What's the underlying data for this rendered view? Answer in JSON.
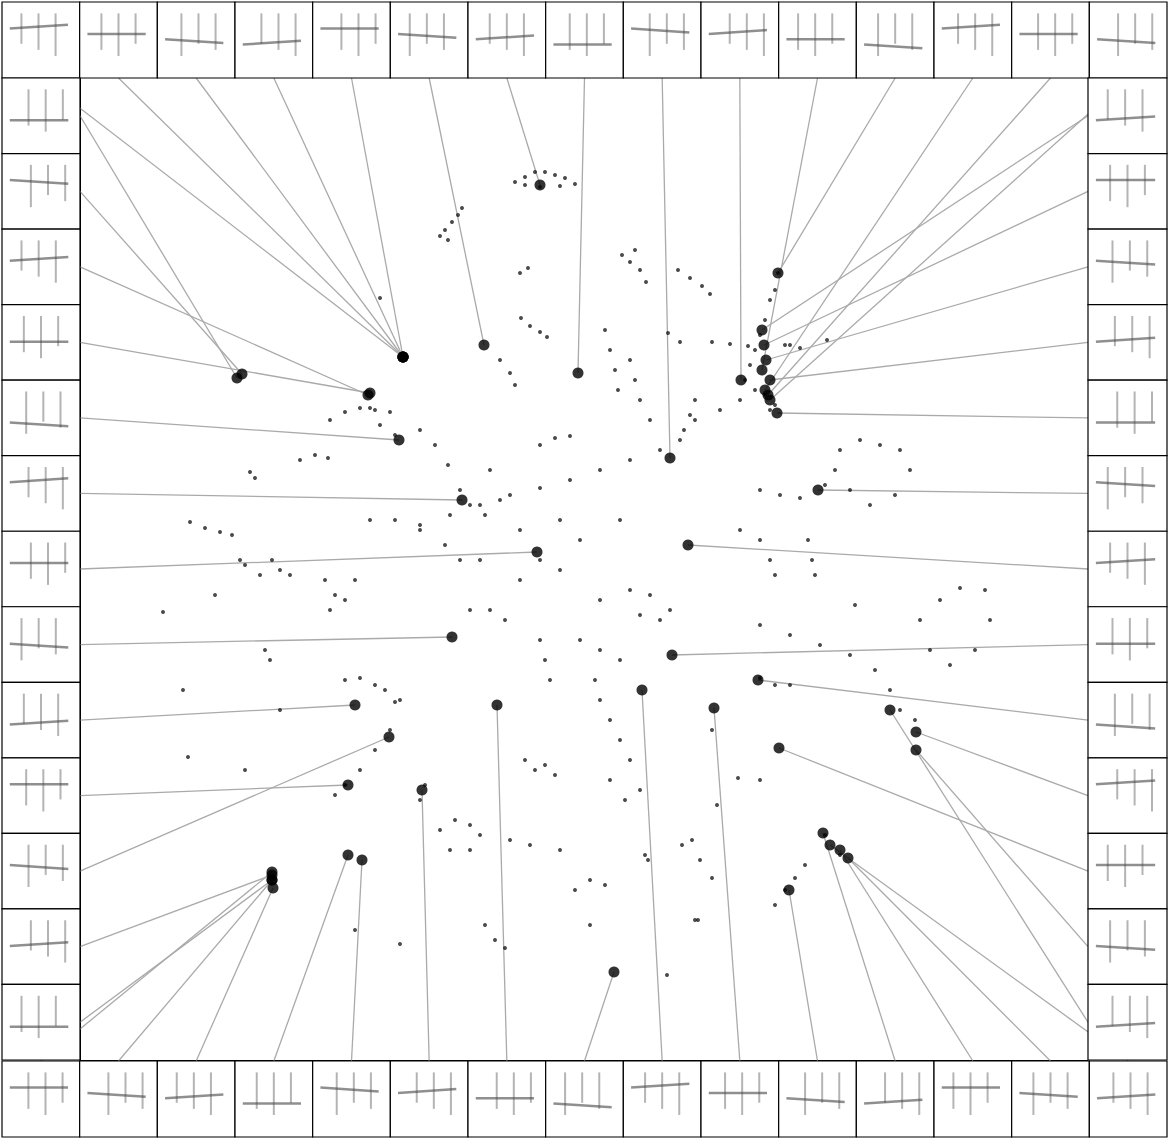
{
  "chart_data": {
    "type": "scatter",
    "color": "#000000",
    "marker": "circle",
    "grid": false,
    "tick_labels": false,
    "xlim": [
      80,
      1088
    ],
    "ylim": [
      79,
      1061
    ],
    "points": [
      [
        515,
        957
      ],
      [
        525,
        962
      ],
      [
        535,
        967
      ],
      [
        545,
        967
      ],
      [
        555,
        964
      ],
      [
        565,
        961
      ],
      [
        575,
        955
      ],
      [
        560,
        953
      ],
      [
        540,
        952
      ],
      [
        525,
        954
      ],
      [
        462,
        931
      ],
      [
        458,
        924
      ],
      [
        452,
        917
      ],
      [
        445,
        909
      ],
      [
        440,
        903
      ],
      [
        448,
        899
      ],
      [
        520,
        866
      ],
      [
        528,
        871
      ],
      [
        622,
        884
      ],
      [
        630,
        877
      ],
      [
        640,
        869
      ],
      [
        646,
        857
      ],
      [
        635,
        889
      ],
      [
        678,
        869
      ],
      [
        690,
        861
      ],
      [
        702,
        853
      ],
      [
        710,
        845
      ],
      [
        380,
        841
      ],
      [
        521,
        821
      ],
      [
        530,
        813
      ],
      [
        540,
        807
      ],
      [
        547,
        802
      ],
      [
        500,
        779
      ],
      [
        510,
        766
      ],
      [
        515,
        754
      ],
      [
        605,
        809
      ],
      [
        610,
        789
      ],
      [
        615,
        769
      ],
      [
        618,
        749
      ],
      [
        630,
        779
      ],
      [
        635,
        759
      ],
      [
        640,
        739
      ],
      [
        650,
        719
      ],
      [
        668,
        806
      ],
      [
        680,
        797
      ],
      [
        695,
        739
      ],
      [
        690,
        724
      ],
      [
        684,
        709
      ],
      [
        712,
        797
      ],
      [
        730,
        795
      ],
      [
        748,
        793
      ],
      [
        778,
        866
      ],
      [
        775,
        849
      ],
      [
        770,
        839
      ],
      [
        765,
        819
      ],
      [
        760,
        804
      ],
      [
        755,
        789
      ],
      [
        750,
        774
      ],
      [
        745,
        759
      ],
      [
        755,
        749
      ],
      [
        765,
        744
      ],
      [
        775,
        734
      ],
      [
        770,
        729
      ],
      [
        740,
        739
      ],
      [
        720,
        729
      ],
      [
        785,
        794
      ],
      [
        800,
        791
      ],
      [
        790,
        794
      ],
      [
        827,
        799
      ],
      [
        330,
        719
      ],
      [
        345,
        727
      ],
      [
        360,
        731
      ],
      [
        375,
        729
      ],
      [
        390,
        727
      ],
      [
        370,
        731
      ],
      [
        380,
        714
      ],
      [
        395,
        704
      ],
      [
        300,
        679
      ],
      [
        315,
        684
      ],
      [
        328,
        681
      ],
      [
        420,
        709
      ],
      [
        435,
        694
      ],
      [
        448,
        674
      ],
      [
        460,
        649
      ],
      [
        470,
        634
      ],
      [
        485,
        624
      ],
      [
        500,
        639
      ],
      [
        540,
        694
      ],
      [
        555,
        701
      ],
      [
        570,
        703
      ],
      [
        420,
        614
      ],
      [
        450,
        624
      ],
      [
        480,
        634
      ],
      [
        510,
        644
      ],
      [
        540,
        651
      ],
      [
        570,
        659
      ],
      [
        600,
        669
      ],
      [
        630,
        679
      ],
      [
        660,
        689
      ],
      [
        680,
        699
      ],
      [
        695,
        719
      ],
      [
        370,
        619
      ],
      [
        395,
        619
      ],
      [
        420,
        609
      ],
      [
        445,
        594
      ],
      [
        460,
        579
      ],
      [
        190,
        617
      ],
      [
        205,
        611
      ],
      [
        220,
        607
      ],
      [
        232,
        604
      ],
      [
        250,
        667
      ],
      [
        255,
        661
      ],
      [
        272,
        579
      ],
      [
        280,
        569
      ],
      [
        290,
        564
      ],
      [
        260,
        564
      ],
      [
        325,
        559
      ],
      [
        335,
        544
      ],
      [
        330,
        529
      ],
      [
        345,
        539
      ],
      [
        355,
        559
      ],
      [
        215,
        544
      ],
      [
        240,
        579
      ],
      [
        245,
        574
      ],
      [
        163,
        527
      ],
      [
        265,
        489
      ],
      [
        270,
        479
      ],
      [
        280,
        429
      ],
      [
        345,
        459
      ],
      [
        360,
        461
      ],
      [
        375,
        454
      ],
      [
        385,
        449
      ],
      [
        395,
        437
      ],
      [
        400,
        439
      ],
      [
        390,
        409
      ],
      [
        375,
        389
      ],
      [
        360,
        369
      ],
      [
        345,
        354
      ],
      [
        335,
        344
      ],
      [
        245,
        369
      ],
      [
        183,
        449
      ],
      [
        188,
        382
      ],
      [
        425,
        354
      ],
      [
        420,
        339
      ],
      [
        440,
        309
      ],
      [
        455,
        319
      ],
      [
        470,
        314
      ],
      [
        480,
        304
      ],
      [
        470,
        289
      ],
      [
        450,
        289
      ],
      [
        540,
        499
      ],
      [
        545,
        479
      ],
      [
        550,
        459
      ],
      [
        580,
        499
      ],
      [
        600,
        489
      ],
      [
        620,
        479
      ],
      [
        525,
        379
      ],
      [
        535,
        369
      ],
      [
        545,
        374
      ],
      [
        555,
        364
      ],
      [
        595,
        459
      ],
      [
        600,
        439
      ],
      [
        610,
        419
      ],
      [
        620,
        399
      ],
      [
        630,
        379
      ],
      [
        610,
        359
      ],
      [
        625,
        339
      ],
      [
        640,
        349
      ],
      [
        575,
        249
      ],
      [
        590,
        259
      ],
      [
        605,
        254
      ],
      [
        485,
        214
      ],
      [
        495,
        199
      ],
      [
        505,
        191
      ],
      [
        355,
        209
      ],
      [
        400,
        195
      ],
      [
        510,
        299
      ],
      [
        530,
        294
      ],
      [
        560,
        289
      ],
      [
        645,
        284
      ],
      [
        667,
        164
      ],
      [
        590,
        214
      ],
      [
        682,
        294
      ],
      [
        712,
        261
      ],
      [
        695,
        219
      ],
      [
        470,
        529
      ],
      [
        490,
        529
      ],
      [
        505,
        519
      ],
      [
        630,
        549
      ],
      [
        650,
        544
      ],
      [
        670,
        529
      ],
      [
        660,
        519
      ],
      [
        640,
        524
      ],
      [
        740,
        609
      ],
      [
        760,
        599
      ],
      [
        775,
        564
      ],
      [
        770,
        579
      ],
      [
        808,
        599
      ],
      [
        812,
        579
      ],
      [
        815,
        564
      ],
      [
        840,
        689
      ],
      [
        860,
        699
      ],
      [
        880,
        694
      ],
      [
        900,
        689
      ],
      [
        910,
        669
      ],
      [
        895,
        644
      ],
      [
        870,
        634
      ],
      [
        850,
        649
      ],
      [
        835,
        669
      ],
      [
        825,
        654
      ],
      [
        760,
        649
      ],
      [
        780,
        644
      ],
      [
        800,
        641
      ],
      [
        940,
        539
      ],
      [
        960,
        551
      ],
      [
        985,
        549
      ],
      [
        990,
        519
      ],
      [
        975,
        489
      ],
      [
        950,
        474
      ],
      [
        930,
        489
      ],
      [
        920,
        519
      ],
      [
        760,
        514
      ],
      [
        790,
        504
      ],
      [
        820,
        494
      ],
      [
        850,
        484
      ],
      [
        875,
        469
      ],
      [
        890,
        449
      ],
      [
        900,
        429
      ],
      [
        915,
        419
      ],
      [
        760,
        461
      ],
      [
        775,
        454
      ],
      [
        790,
        454
      ],
      [
        712,
        409
      ],
      [
        738,
        361
      ],
      [
        760,
        359
      ],
      [
        775,
        234
      ],
      [
        785,
        249
      ],
      [
        795,
        261
      ],
      [
        805,
        274
      ],
      [
        825,
        304
      ],
      [
        840,
        284
      ],
      [
        717,
        334
      ],
      [
        692,
        299
      ],
      [
        700,
        279
      ],
      [
        698,
        219
      ],
      [
        648,
        279
      ],
      [
        855,
        534
      ],
      [
        480,
        579
      ],
      [
        520,
        559
      ],
      [
        560,
        569
      ],
      [
        600,
        539
      ],
      [
        580,
        599
      ],
      [
        540,
        579
      ],
      [
        520,
        609
      ],
      [
        490,
        669
      ],
      [
        560,
        619
      ],
      [
        620,
        619
      ]
    ],
    "exemplars": {
      "top": [
        [
          403,
          782
        ],
        [
          403,
          782
        ],
        [
          403,
          782
        ],
        [
          403,
          782
        ],
        [
          403,
          782
        ],
        [
          484,
          794
        ],
        [
          540,
          954
        ],
        [
          578,
          766
        ],
        [
          670,
          681
        ],
        [
          741,
          759
        ],
        [
          762,
          769
        ],
        [
          778,
          866
        ],
        [
          765,
          749
        ],
        [
          768,
          744
        ],
        [
          770,
          739
        ]
      ],
      "right": [
        [
          762,
          809
        ],
        [
          764,
          794
        ],
        [
          766,
          779
        ],
        [
          770,
          759
        ],
        [
          777,
          726
        ],
        [
          818,
          649
        ],
        [
          688,
          594
        ],
        [
          672,
          484
        ],
        [
          758,
          459
        ],
        [
          916,
          407
        ],
        [
          779,
          391
        ],
        [
          916,
          389
        ],
        [
          890,
          429
        ]
      ],
      "bottom": [
        [
          272,
          267
        ],
        [
          272,
          259
        ],
        [
          273,
          251
        ],
        [
          348,
          284
        ],
        [
          362,
          279
        ],
        [
          422,
          349
        ],
        [
          497,
          434
        ],
        [
          614,
          167
        ],
        [
          642,
          449
        ],
        [
          714,
          431
        ],
        [
          789,
          249
        ],
        [
          823,
          306
        ],
        [
          840,
          289
        ],
        [
          848,
          281
        ],
        [
          830,
          294
        ]
      ],
      "left": [
        [
          237,
          761
        ],
        [
          242,
          765
        ],
        [
          368,
          744
        ],
        [
          370,
          746
        ],
        [
          399,
          699
        ],
        [
          462,
          639
        ],
        [
          537,
          587
        ],
        [
          452,
          502
        ],
        [
          355,
          434
        ],
        [
          348,
          354
        ],
        [
          389,
          402
        ],
        [
          272,
          264
        ],
        [
          272,
          259
        ]
      ]
    }
  }
}
